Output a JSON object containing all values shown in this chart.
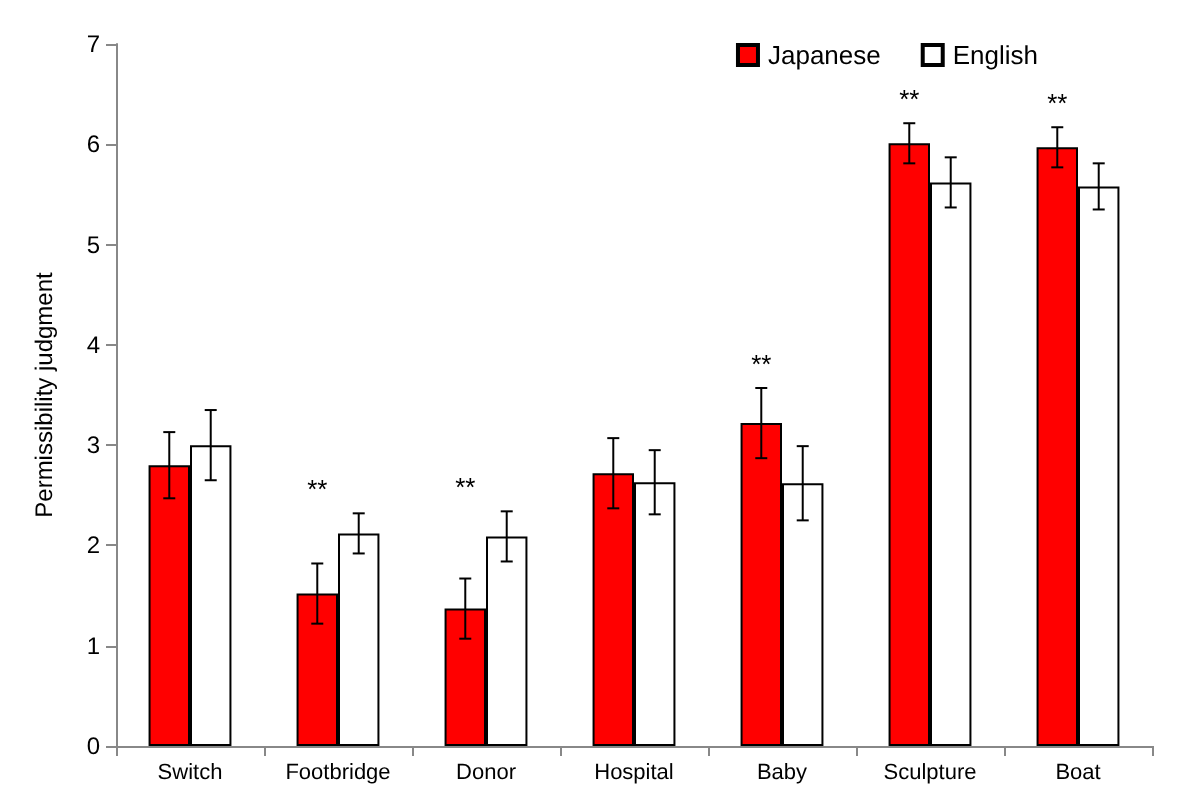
{
  "chart_data": {
    "type": "bar",
    "ylabel": "Permissibility judgment",
    "categories": [
      "Switch",
      "Footbridge",
      "Donor",
      "Hospital",
      "Baby",
      "Sculpture",
      "Boat"
    ],
    "series": [
      {
        "name": "Japanese",
        "color": "#ff0000",
        "values": [
          2.8,
          1.52,
          1.37,
          2.72,
          3.22,
          6.01,
          5.97
        ],
        "errors": [
          0.33,
          0.3,
          0.3,
          0.35,
          0.35,
          0.2,
          0.2
        ]
      },
      {
        "name": "English",
        "color": "#ffffff",
        "values": [
          3.0,
          2.12,
          2.09,
          2.63,
          2.62,
          5.62,
          5.58
        ],
        "errors": [
          0.35,
          0.2,
          0.25,
          0.32,
          0.37,
          0.25,
          0.23
        ]
      }
    ],
    "ylim": [
      0,
      7
    ],
    "yticks": [
      0,
      1,
      2,
      3,
      4,
      5,
      6,
      7
    ],
    "grid": false,
    "legend": "top right",
    "annotations": [
      {
        "text": "**",
        "x": "Footbridge",
        "y": 2.12
      },
      {
        "text": "**",
        "x": "Donor",
        "y": 2.09
      },
      {
        "text": "**",
        "x": "Baby",
        "y": 3.22
      },
      {
        "text": "**",
        "x": "Sculpture",
        "y": 6.01
      },
      {
        "text": "**",
        "x": "Boat",
        "y": 5.97
      }
    ]
  }
}
